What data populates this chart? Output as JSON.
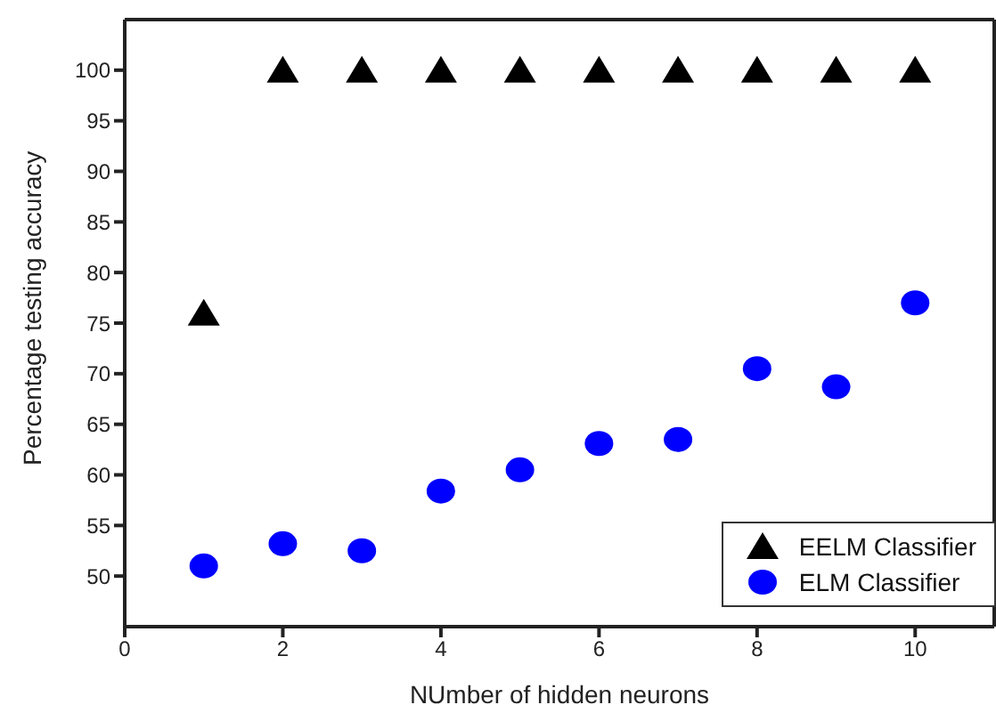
{
  "chart_data": {
    "type": "scatter",
    "xlabel": "NUmber of hidden neurons",
    "ylabel": "Percentage testing accuracy",
    "x": [
      1,
      2,
      3,
      4,
      5,
      6,
      7,
      8,
      9,
      10
    ],
    "series": [
      {
        "name": "EELM Classifier",
        "color": "#000000",
        "marker": "triangle",
        "values": [
          76,
          100,
          100,
          100,
          100,
          100,
          100,
          100,
          100,
          100
        ]
      },
      {
        "name": "ELM Classifier",
        "color": "#0000ff",
        "marker": "circle",
        "values": [
          51,
          53.2,
          52.5,
          58.4,
          60.5,
          63.1,
          63.5,
          70.5,
          68.7,
          77
        ]
      }
    ],
    "xlim": [
      0,
      11
    ],
    "xticks": [
      0,
      2,
      4,
      6,
      8,
      10
    ],
    "ylim": [
      45,
      105
    ],
    "yticks": [
      50,
      55,
      60,
      65,
      70,
      75,
      80,
      85,
      90,
      95,
      100
    ],
    "legend": "bottom right"
  }
}
